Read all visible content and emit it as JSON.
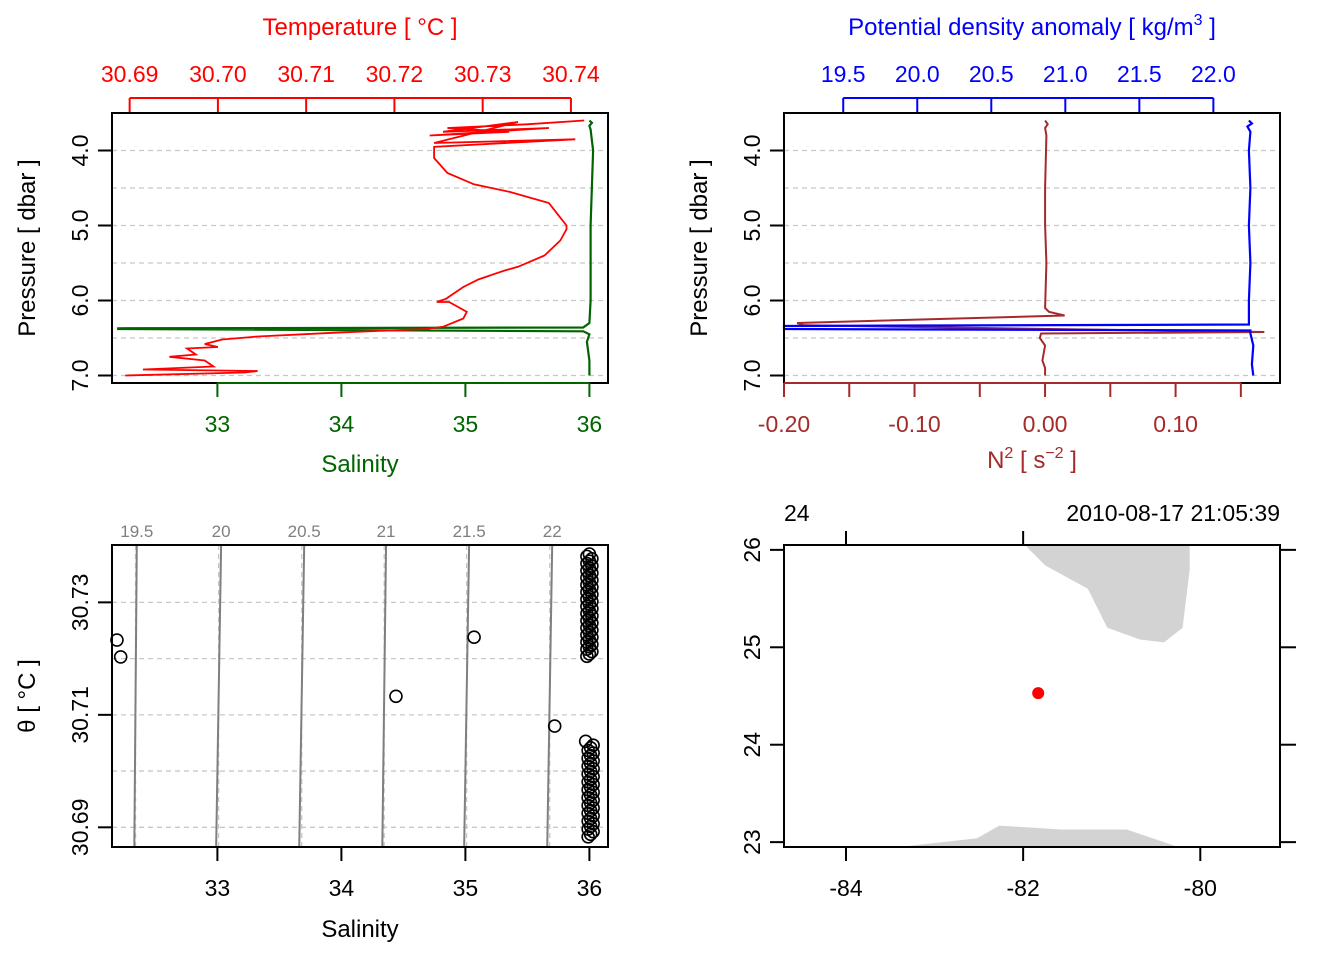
{
  "colors": {
    "temperature": "#ff0000",
    "salinity": "#006400",
    "density": "#0000ff",
    "n2": "#a52a2a",
    "land": "#d3d3d3",
    "station": "#ff0000",
    "isopycnal": "#7f7f7f"
  },
  "chart_data": [
    {
      "type": "line",
      "panel": "profile-TS",
      "top_title": "Temperature [ °C ]",
      "bottom_title": "Salinity",
      "ylabel": "Pressure [ dbar ]",
      "ylim": [
        7.1,
        3.5
      ],
      "y_ticks": [
        "4.0",
        "5.0",
        "6.0",
        "7.0"
      ],
      "y_tick_values": [
        4.0,
        5.0,
        6.0,
        7.0
      ],
      "grid_values": [
        4.0,
        4.5,
        5.0,
        5.5,
        6.0,
        6.5,
        7.0
      ],
      "top_axis": {
        "lim": [
          30.688,
          30.7442
        ],
        "ticks": [
          "30.69",
          "30.70",
          "30.71",
          "30.72",
          "30.73",
          "30.74"
        ],
        "values": [
          30.69,
          30.7,
          30.71,
          30.72,
          30.73,
          30.74
        ]
      },
      "bottom_axis": {
        "lim": [
          32.15,
          36.15
        ],
        "ticks": [
          "33",
          "34",
          "35",
          "36"
        ],
        "values": [
          33,
          34,
          35,
          36
        ]
      },
      "series": [
        {
          "name": "Temperature",
          "x": [
            30.7415,
            30.735,
            30.726,
            30.733,
            30.724,
            30.7375,
            30.7255,
            30.734,
            30.7245,
            30.7405,
            30.7245,
            30.7245,
            30.726,
            30.729,
            30.733,
            30.7375,
            30.7385,
            30.7395,
            30.7395,
            30.7388,
            30.737,
            30.734,
            30.7325,
            30.7312,
            30.7305,
            30.7295,
            30.7278,
            30.7258,
            30.7248,
            30.7262,
            30.7282,
            30.7278,
            30.7255,
            30.7235,
            30.713,
            30.7045,
            30.7005,
            30.6985,
            30.7,
            30.6965,
            30.6975,
            30.6945,
            30.6985,
            30.6995,
            30.6915,
            30.7045,
            30.703,
            30.6895
          ],
          "y": [
            3.6,
            3.65,
            3.7,
            3.75,
            3.8,
            3.7,
            3.75,
            3.62,
            3.9,
            3.85,
            3.95,
            4.1,
            4.3,
            4.45,
            4.55,
            4.7,
            4.85,
            5.0,
            5.05,
            5.2,
            5.4,
            5.55,
            5.6,
            5.65,
            5.68,
            5.72,
            5.82,
            5.98,
            6.02,
            6.02,
            6.15,
            6.24,
            6.35,
            6.38,
            6.43,
            6.48,
            6.52,
            6.58,
            6.62,
            6.64,
            6.72,
            6.75,
            6.8,
            6.88,
            6.92,
            6.94,
            6.96,
            7.0
          ]
        },
        {
          "name": "Salinity",
          "x": [
            36.0,
            36.02,
            36.0,
            36.01,
            36.03,
            36.01,
            36.01,
            36.0,
            35.95,
            32.2,
            32.2,
            35.95,
            36.0,
            35.98,
            36.0,
            36.0
          ],
          "y": [
            3.6,
            3.63,
            3.67,
            3.72,
            4.0,
            5.0,
            6.0,
            6.3,
            6.36,
            6.37,
            6.38,
            6.41,
            6.45,
            6.55,
            6.8,
            7.0
          ]
        }
      ]
    },
    {
      "type": "line",
      "panel": "profile-density-N2",
      "top_title": "Potential density anomaly [ kg/m",
      "top_title_sup": "3",
      "top_title_end": " ]",
      "bottom_title": "N",
      "bottom_title_sup": "2",
      "bottom_title_mid": " [ s",
      "bottom_title_sup2": "−2",
      "bottom_title_end": " ]",
      "ylabel": "Pressure [ dbar ]",
      "ylim": [
        7.1,
        3.5
      ],
      "y_ticks": [
        "4.0",
        "5.0",
        "6.0",
        "7.0"
      ],
      "y_tick_values": [
        4.0,
        5.0,
        6.0,
        7.0
      ],
      "grid_values": [
        4.0,
        4.5,
        5.0,
        5.5,
        6.0,
        6.5,
        7.0
      ],
      "top_axis": {
        "lim": [
          19.1,
          22.45
        ],
        "ticks": [
          "19.5",
          "20.0",
          "20.5",
          "21.0",
          "21.5",
          "22.0"
        ],
        "values": [
          19.5,
          20.0,
          20.5,
          21.0,
          21.5,
          22.0
        ]
      },
      "bottom_axis": {
        "lim": [
          -0.2,
          0.18
        ],
        "ticks": [
          "-0.20",
          "-0.10",
          "0.00",
          "0.10"
        ],
        "values": [
          -0.2,
          -0.1,
          0.0,
          0.1
        ],
        "minor": [
          -0.15,
          -0.05,
          0.05,
          0.15
        ]
      },
      "series": [
        {
          "name": "Potential density anomaly",
          "x": [
            22.24,
            22.26,
            22.23,
            22.25,
            22.24,
            22.25,
            22.24,
            22.25,
            22.24,
            22.24,
            19.1,
            19.1,
            22.25,
            22.25,
            22.27,
            22.26,
            22.27
          ],
          "y": [
            3.6,
            3.64,
            3.68,
            3.75,
            4.0,
            4.5,
            5.0,
            5.5,
            6.0,
            6.32,
            6.34,
            6.38,
            6.4,
            6.44,
            6.6,
            6.85,
            7.0
          ]
        },
        {
          "name": "N2",
          "x": [
            0.0,
            0.002,
            0.0,
            0.001,
            0.0,
            0.0,
            0.001,
            0.0,
            0.003,
            0.015,
            -0.19,
            -0.185,
            0.002,
            0.168,
            -0.003,
            -0.004,
            0.0,
            -0.002,
            0.0,
            0.0
          ],
          "y": [
            3.6,
            3.65,
            3.7,
            3.8,
            4.5,
            5.0,
            5.5,
            6.1,
            6.15,
            6.2,
            6.3,
            6.33,
            6.38,
            6.42,
            6.44,
            6.5,
            6.6,
            6.8,
            6.9,
            7.0
          ]
        }
      ]
    },
    {
      "type": "scatter",
      "panel": "TS-diagram",
      "xlabel": "Salinity",
      "ylabel": "θ [ °C ]",
      "xlim": [
        32.15,
        36.15
      ],
      "ylim": [
        30.6865,
        30.7402
      ],
      "x_ticks": [
        "33",
        "34",
        "35",
        "36"
      ],
      "x_tick_values": [
        33,
        34,
        35,
        36
      ],
      "y_ticks": [
        "30.69",
        "30.71",
        "30.73"
      ],
      "y_tick_values": [
        30.69,
        30.71,
        30.73
      ],
      "y_grid": [
        30.69,
        30.7,
        30.71,
        30.72,
        30.73
      ],
      "isopycnals": [
        {
          "label": "19.5",
          "bottom": 32.33,
          "top": 32.35
        },
        {
          "label": "20",
          "bottom": 32.99,
          "top": 33.03
        },
        {
          "label": "20.5",
          "bottom": 33.66,
          "top": 33.7
        },
        {
          "label": "21",
          "bottom": 34.33,
          "top": 34.36
        },
        {
          "label": "21.5",
          "bottom": 34.99,
          "top": 35.03
        },
        {
          "label": "22",
          "bottom": 35.66,
          "top": 35.7
        }
      ],
      "points": {
        "S": [
          32.19,
          32.22,
          34.44,
          35.07,
          35.72,
          35.97
        ],
        "T": [
          30.7233,
          30.7203,
          30.7133,
          30.7238,
          30.708,
          30.7053
        ]
      },
      "cluster_top": {
        "S": 36.0,
        "T_from": 30.7204,
        "T_to": 30.7386,
        "count": 44
      },
      "cluster_bottom": {
        "S": 36.01,
        "T_from": 30.6883,
        "T_to": 30.7046,
        "count": 36
      }
    },
    {
      "type": "map",
      "panel": "station-map",
      "top_left_label": "24",
      "timestamp": "2010-08-17 21:05:39",
      "xlim": [
        -84.7,
        -79.1
      ],
      "ylim": [
        22.95,
        26.05
      ],
      "x_ticks": [
        "-84",
        "-82",
        "-80"
      ],
      "x_tick_values": [
        -84,
        -82,
        -80
      ],
      "y_ticks": [
        "23",
        "24",
        "25",
        "26"
      ],
      "y_tick_values": [
        23,
        24,
        25,
        26
      ],
      "top_ticks": [
        -84,
        -82
      ],
      "right_ticks": [
        23,
        24,
        25,
        26
      ],
      "land_north": {
        "lon": [
          -81.98,
          -80.12,
          -80.12,
          -80.2,
          -80.41,
          -80.68,
          -81.05,
          -81.27,
          -81.75
        ],
        "lat": [
          26.05,
          26.05,
          25.8,
          25.2,
          25.05,
          25.08,
          25.2,
          25.6,
          25.84
        ]
      },
      "land_south": {
        "lon": [
          -83.4,
          -82.52,
          -82.27,
          -81.57,
          -80.83,
          -80.25
        ],
        "lat": [
          22.95,
          23.04,
          23.17,
          23.13,
          23.13,
          22.95
        ]
      },
      "station": {
        "lon": -81.83,
        "lat": 24.53
      }
    }
  ]
}
